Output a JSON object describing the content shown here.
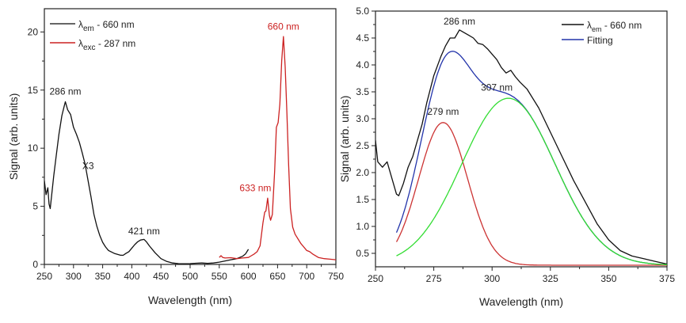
{
  "chart_data": [
    {
      "type": "line",
      "title": "",
      "xlabel": "Wavelength (nm)",
      "ylabel": "Signal (arb. units)",
      "xlim": [
        250,
        750
      ],
      "ylim": [
        0,
        22
      ],
      "xticks": [
        250,
        300,
        350,
        400,
        450,
        500,
        550,
        600,
        650,
        700,
        750
      ],
      "yticks": [
        0,
        5,
        10,
        15,
        20
      ],
      "grid": false,
      "legend_position": "top-left",
      "legend": [
        {
          "symbol": "λ",
          "sub": "em",
          "rest": " - 660 nm",
          "color": "#333333"
        },
        {
          "symbol": "λ",
          "sub": "exc",
          "rest": " - 287 nm",
          "color": "#cc2222"
        }
      ],
      "annotations": [
        {
          "text": "286 nm",
          "x": 286,
          "y": 14.6,
          "color": "#222222"
        },
        {
          "text": "X3",
          "x": 325,
          "y": 8.2,
          "color": "#222222",
          "large": true
        },
        {
          "text": "421 nm",
          "x": 421,
          "y": 2.6,
          "color": "#222222"
        },
        {
          "text": "633 nm",
          "x": 612,
          "y": 6.3,
          "color": "#cc2222"
        },
        {
          "text": "660 nm",
          "x": 660,
          "y": 20.2,
          "color": "#cc2222"
        }
      ],
      "series": [
        {
          "name": "λem - 660 nm",
          "color": "#111111",
          "x": [
            250,
            253,
            256,
            258,
            260,
            263,
            266,
            270,
            275,
            280,
            284,
            286,
            290,
            295,
            300,
            305,
            310,
            315,
            320,
            325,
            330,
            335,
            340,
            345,
            350,
            355,
            360,
            370,
            380,
            385,
            390,
            395,
            400,
            405,
            410,
            415,
            421,
            425,
            430,
            440,
            450,
            460,
            470,
            480,
            490,
            500,
            510,
            520,
            530,
            540,
            550,
            560,
            570,
            580,
            590,
            595,
            600
          ],
          "y": [
            7.2,
            6.0,
            6.6,
            5.2,
            4.8,
            6.2,
            7.6,
            9.2,
            11.2,
            12.8,
            13.6,
            14.0,
            13.3,
            12.9,
            11.8,
            11.2,
            10.5,
            9.6,
            8.6,
            7.2,
            5.8,
            4.3,
            3.3,
            2.5,
            1.9,
            1.5,
            1.2,
            0.95,
            0.8,
            0.78,
            0.95,
            1.1,
            1.4,
            1.7,
            1.95,
            2.1,
            2.15,
            1.95,
            1.6,
            1.0,
            0.5,
            0.25,
            0.12,
            0.07,
            0.06,
            0.07,
            0.1,
            0.12,
            0.09,
            0.12,
            0.2,
            0.3,
            0.4,
            0.5,
            0.7,
            0.9,
            1.3
          ]
        },
        {
          "name": "λexc - 287 nm",
          "color": "#cc2222",
          "x": [
            550,
            553,
            556,
            560,
            570,
            580,
            590,
            600,
            605,
            610,
            615,
            620,
            625,
            628,
            630,
            633,
            636,
            638,
            641,
            645,
            648,
            651,
            654,
            657,
            660,
            663,
            666,
            669,
            672,
            676,
            680,
            690,
            700,
            705,
            710,
            720,
            730,
            740,
            750
          ],
          "y": [
            0.6,
            0.75,
            0.6,
            0.55,
            0.58,
            0.5,
            0.55,
            0.6,
            0.75,
            0.9,
            1.1,
            1.6,
            3.6,
            4.5,
            4.6,
            5.7,
            4.2,
            3.8,
            4.3,
            8.0,
            11.8,
            12.2,
            13.8,
            17.5,
            19.6,
            17.0,
            13.0,
            8.5,
            4.8,
            3.2,
            2.6,
            1.8,
            1.2,
            1.1,
            0.9,
            0.6,
            0.5,
            0.45,
            0.4
          ]
        }
      ]
    },
    {
      "type": "line",
      "title": "",
      "xlabel": "Wavelength (nm)",
      "ylabel": "Signal (arb. units)",
      "xlim": [
        250,
        375
      ],
      "ylim": [
        0.25,
        5.0
      ],
      "xticks": [
        250,
        275,
        300,
        325,
        350,
        375
      ],
      "yticks": [
        0.5,
        1.0,
        1.5,
        2.0,
        2.5,
        3.0,
        3.5,
        4.0,
        4.5,
        5.0
      ],
      "grid": false,
      "legend_position": "top-right",
      "legend": [
        {
          "symbol": "λ",
          "sub": "em",
          "rest": " - 660 nm",
          "color": "#111111"
        },
        {
          "symbol": "",
          "sub": "",
          "rest": "Fitting",
          "color": "#2233aa"
        }
      ],
      "annotations": [
        {
          "text": "286 nm",
          "x": 286,
          "y": 4.75,
          "color": "#222222"
        },
        {
          "text": "279 nm",
          "x": 279,
          "y": 3.07,
          "color": "#222222"
        },
        {
          "text": "307 nm",
          "x": 302,
          "y": 3.52,
          "color": "#222222"
        }
      ],
      "series": [
        {
          "name": "λem - 660 nm",
          "color": "#111111",
          "x": [
            250,
            251,
            253,
            255,
            257,
            259,
            260,
            262,
            264,
            266,
            268,
            270,
            272,
            275,
            278,
            280,
            282,
            284,
            286,
            288,
            290,
            292,
            294,
            296,
            298,
            300,
            302,
            304,
            306,
            308,
            310,
            312,
            315,
            320,
            325,
            330,
            335,
            340,
            345,
            350,
            355,
            360,
            365,
            370,
            375
          ],
          "y": [
            2.6,
            2.2,
            2.1,
            2.2,
            1.9,
            1.6,
            1.57,
            1.8,
            2.1,
            2.3,
            2.6,
            2.9,
            3.3,
            3.8,
            4.15,
            4.35,
            4.5,
            4.5,
            4.65,
            4.6,
            4.55,
            4.5,
            4.4,
            4.38,
            4.3,
            4.2,
            4.1,
            3.95,
            3.85,
            3.9,
            3.78,
            3.68,
            3.55,
            3.2,
            2.75,
            2.3,
            1.85,
            1.45,
            1.05,
            0.75,
            0.55,
            0.45,
            0.4,
            0.35,
            0.3
          ]
        },
        {
          "name": "Fitting",
          "color": "#2233aa",
          "peak_components": [
            {
              "center": 279,
              "height": 2.65,
              "sigma": 10.5
            },
            {
              "center": 307,
              "height": 3.1,
              "sigma": 20
            }
          ],
          "baseline": 0.28,
          "x_range": [
            259,
            375
          ]
        },
        {
          "name": "Peak 279 nm",
          "color": "#cc3333",
          "center": 279,
          "height": 2.65,
          "sigma": 10.5,
          "baseline": 0.28,
          "x_range": [
            259,
            375
          ]
        },
        {
          "name": "Peak 307 nm",
          "color": "#33dd33",
          "center": 307,
          "height": 3.1,
          "sigma": 20,
          "baseline": 0.28,
          "x_range": [
            259,
            375
          ]
        }
      ]
    }
  ]
}
